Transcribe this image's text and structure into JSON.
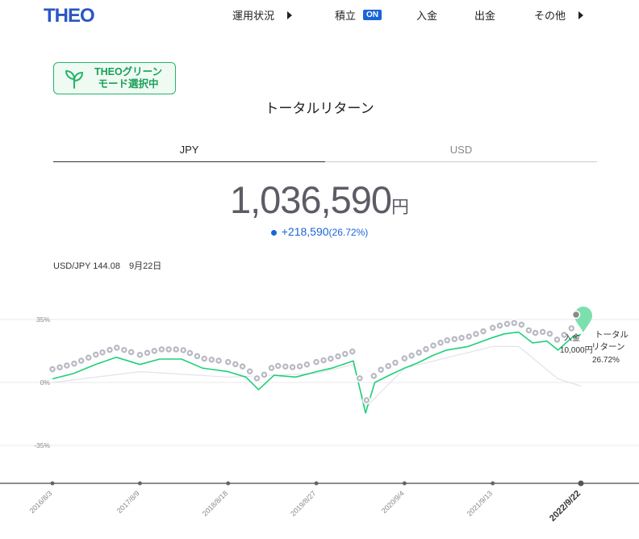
{
  "header": {
    "logo": "THEO",
    "nav": [
      {
        "label": "運用状況",
        "has_arrow": true
      },
      {
        "label": "積立",
        "badge": "ON"
      },
      {
        "label": "入金"
      },
      {
        "label": "出金"
      },
      {
        "label": "その他",
        "has_arrow": true
      }
    ]
  },
  "green_mode": {
    "line1": "THEOグリーン",
    "line2": "モード選択中",
    "icon": "sprout-icon"
  },
  "page_title": "トータルリターン",
  "tabs": [
    {
      "label": "JPY",
      "active": true
    },
    {
      "label": "USD",
      "active": false
    }
  ],
  "total": {
    "amount": "1,036,590",
    "unit": "円"
  },
  "change": {
    "value": "+218,590",
    "percent": "(26.72%)"
  },
  "rate": "USD/JPY 144.08　9月22日",
  "annotations": {
    "deposit_label": "入金",
    "deposit_amount": "10,000円",
    "return_label_1": "トータル",
    "return_label_2": "リターン",
    "return_value": "26.72%"
  },
  "colors": {
    "brand": "#2a56c6",
    "accent_blue": "#1a64d8",
    "green": "#1ed07a",
    "green_dark": "#1a9f58",
    "gray_line": "#e3e3ea"
  },
  "chart_data": {
    "type": "line",
    "y_ticks": [
      "35%",
      "0%",
      "-35%"
    ],
    "ylim": [
      -50,
      40
    ],
    "x_ticks": [
      "2016/8/3",
      "2017/8/9",
      "2018/8/18",
      "2019/8/27",
      "2020/9/4",
      "2021/9/13",
      "2022/9/22"
    ],
    "grid": true,
    "series": [
      {
        "name": "トータルリターン",
        "color": "#1ed07a",
        "x": [
          "2016/8/3",
          "2016/11/1",
          "2017/2/1",
          "2017/5/1",
          "2017/8/9",
          "2017/11/1",
          "2018/2/1",
          "2018/5/1",
          "2018/8/18",
          "2018/11/1",
          "2018/12/25",
          "2019/3/1",
          "2019/6/1",
          "2019/8/27",
          "2019/11/1",
          "2020/1/31",
          "2020/3/23",
          "2020/5/1",
          "2020/7/1",
          "2020/9/4",
          "2020/11/1",
          "2021/1/1",
          "2021/3/1",
          "2021/6/1",
          "2021/9/13",
          "2021/11/1",
          "2022/1/1",
          "2022/3/1",
          "2022/5/1",
          "2022/6/17",
          "2022/8/15",
          "2022/9/22"
        ],
        "values": [
          2,
          5,
          10,
          14,
          10,
          13,
          13,
          8,
          6,
          3,
          -4,
          4,
          3,
          6,
          8,
          12,
          -17,
          0,
          4,
          8,
          11,
          15,
          18,
          20,
          25,
          27,
          28,
          22,
          23,
          18,
          25,
          26.72
        ]
      },
      {
        "name": "",
        "color": "#e3e3ea",
        "x": [
          "2016/8/3",
          "2017/8/9",
          "2018/8/18",
          "2019/8/27",
          "2020/1/31",
          "2020/3/23",
          "2020/9/4",
          "2021/9/13",
          "2022/1/1",
          "2022/6/17",
          "2022/9/22"
        ],
        "values": [
          0,
          6,
          3,
          5,
          10,
          -14,
          8,
          20,
          20,
          2,
          -2
        ]
      }
    ],
    "deposit_markers": [
      "2016/8/3",
      "2016/9/3",
      "2016/10/3",
      "2016/11/3",
      "2016/12/3",
      "2017/1/3",
      "2017/2/3",
      "2017/3/3",
      "2017/4/3",
      "2017/5/3",
      "2017/6/3",
      "2017/7/3",
      "2017/8/9",
      "2017/9/9",
      "2017/10/9",
      "2017/11/9",
      "2017/12/9",
      "2018/1/9",
      "2018/2/9",
      "2018/3/9",
      "2018/4/9",
      "2018/5/9",
      "2018/6/9",
      "2018/7/9",
      "2018/8/18",
      "2018/9/18",
      "2018/10/18",
      "2018/11/18",
      "2018/12/18",
      "2019/1/18",
      "2019/2/18",
      "2019/3/18",
      "2019/4/18",
      "2019/5/18",
      "2019/6/18",
      "2019/7/18",
      "2019/8/27",
      "2019/9/27",
      "2019/10/27",
      "2019/11/27",
      "2019/12/27",
      "2020/1/27",
      "2020/2/27",
      "2020/3/27",
      "2020/4/27",
      "2020/5/27",
      "2020/6/27",
      "2020/7/27",
      "2020/9/4",
      "2020/10/4",
      "2020/11/4",
      "2020/12/4",
      "2021/1/4",
      "2021/2/4",
      "2021/3/4",
      "2021/4/4",
      "2021/5/4",
      "2021/6/4",
      "2021/7/4",
      "2021/8/4",
      "2021/9/13",
      "2021/10/13",
      "2021/11/13",
      "2021/12/13",
      "2022/1/13",
      "2022/2/13",
      "2022/3/13",
      "2022/4/13",
      "2022/5/13",
      "2022/6/13",
      "2022/7/13",
      "2022/8/13",
      "2022/9/22"
    ]
  }
}
